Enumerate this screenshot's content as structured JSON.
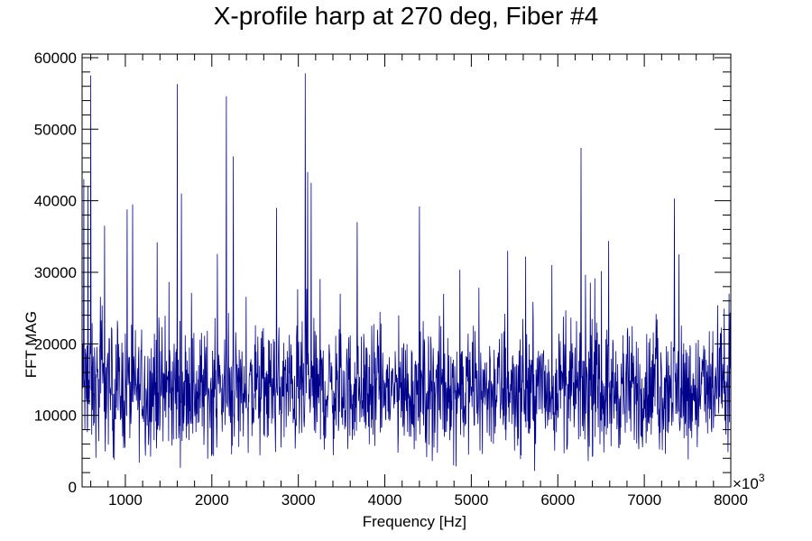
{
  "chart_data": {
    "type": "line",
    "title": "X-profile harp at 270 deg, Fiber #4",
    "xlabel": "Frequency [Hz]",
    "ylabel": "FFT MAG",
    "x_multiplier_label": "×10",
    "x_multiplier_exponent": "3",
    "xlim": [
      500,
      8000
    ],
    "ylim": [
      0,
      60500
    ],
    "x_ticks": [
      1000,
      2000,
      3000,
      4000,
      5000,
      6000,
      7000,
      8000
    ],
    "y_ticks": [
      0,
      10000,
      20000,
      30000,
      40000,
      50000,
      60000
    ],
    "x_tick_labels": [
      "1000",
      "2000",
      "3000",
      "4000",
      "5000",
      "6000",
      "7000",
      "8000"
    ],
    "y_tick_labels": [
      "0",
      "10000",
      "20000",
      "30000",
      "40000",
      "50000",
      "60000"
    ],
    "grid": false,
    "series": [
      {
        "color": "#00008b",
        "baseline": 13500,
        "noise_spread": 9000,
        "peaks": [
          {
            "x": 520,
            "y": 43000
          },
          {
            "x": 570,
            "y": 42000
          },
          {
            "x": 600,
            "y": 57500
          },
          {
            "x": 760,
            "y": 36500
          },
          {
            "x": 1020,
            "y": 38800
          },
          {
            "x": 1370,
            "y": 34200
          },
          {
            "x": 1600,
            "y": 56300
          },
          {
            "x": 1650,
            "y": 41000
          },
          {
            "x": 2170,
            "y": 54600
          },
          {
            "x": 2250,
            "y": 46200
          },
          {
            "x": 2750,
            "y": 39000
          },
          {
            "x": 3080,
            "y": 57800
          },
          {
            "x": 3110,
            "y": 44000
          },
          {
            "x": 3150,
            "y": 42500
          },
          {
            "x": 3680,
            "y": 37000
          },
          {
            "x": 4400,
            "y": 39200
          },
          {
            "x": 5420,
            "y": 33000
          },
          {
            "x": 6270,
            "y": 47400
          },
          {
            "x": 7350,
            "y": 40300
          },
          {
            "x": 7400,
            "y": 32500
          },
          {
            "x": 7880,
            "y": 21500
          }
        ]
      }
    ]
  }
}
